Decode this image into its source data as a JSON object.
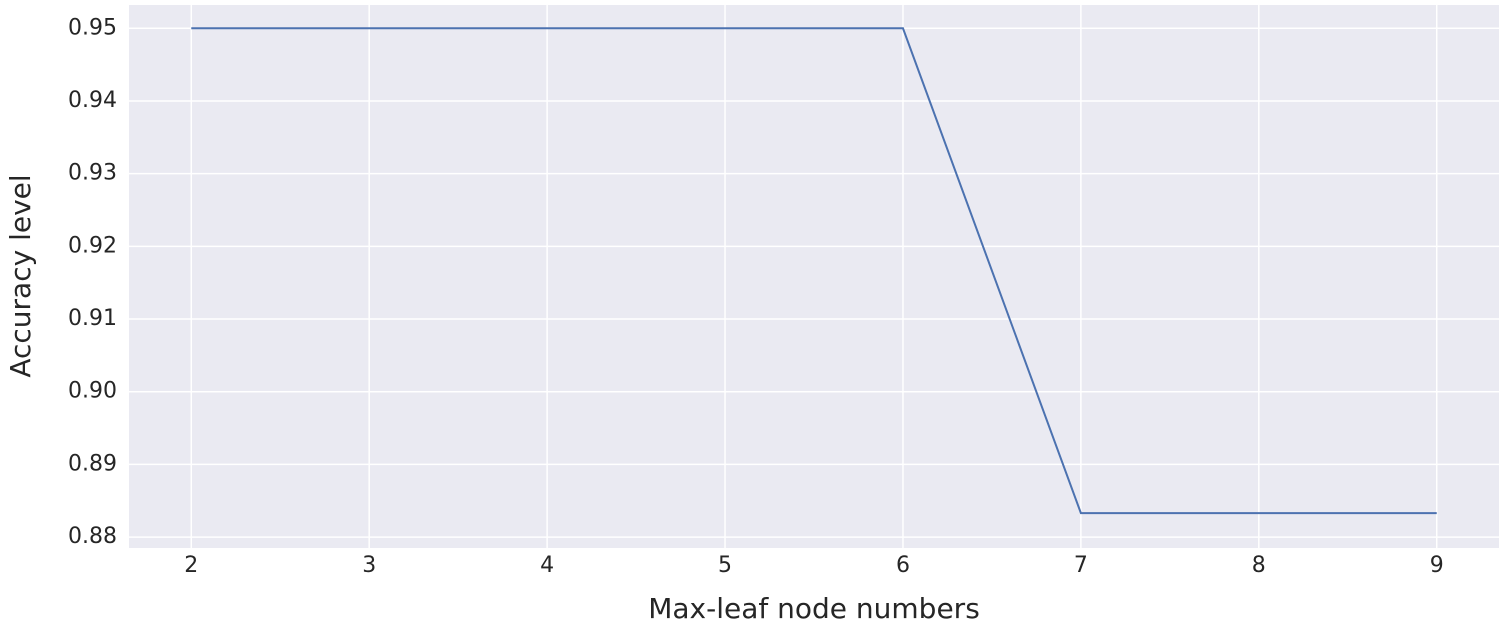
{
  "chart_data": {
    "type": "line",
    "x": [
      2,
      3,
      4,
      5,
      6,
      7,
      8,
      9
    ],
    "series": [
      {
        "color": "#4c72b0",
        "values": [
          0.95,
          0.95,
          0.95,
          0.95,
          0.95,
          0.8833,
          0.8833,
          0.8833
        ]
      }
    ],
    "x_label": "Max-leaf node numbers",
    "y_label": "Accuracy level",
    "xlim": [
      1.65,
      9.35
    ],
    "ylim": [
      0.8785,
      0.9532
    ],
    "xticks": [
      2,
      3,
      4,
      5,
      6,
      7,
      8,
      9
    ],
    "yticks": [
      0.88,
      0.89,
      {
        "value": 0.9,
        "label": "0.90"
      },
      0.91,
      0.92,
      0.93,
      0.94,
      0.95
    ],
    "grid": true,
    "background": "#eaeaf2"
  }
}
